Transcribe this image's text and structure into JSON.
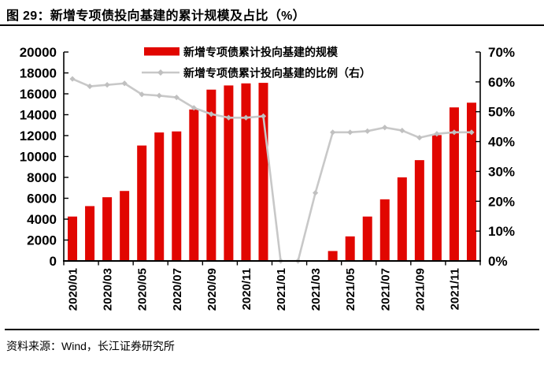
{
  "page": {
    "title": "图 29：新增专项债投向基建的累计规模及占比（%）",
    "source": "资料来源：Wind，长江证券研究所"
  },
  "colors": {
    "bar": "#e10600",
    "line": "#c8c8c8",
    "marker": "#c0c0c0",
    "axis": "#000000",
    "text": "#000000"
  },
  "chart_data": {
    "type": "bar",
    "subtype": "bar+line dual axis",
    "title": "新增专项债投向基建的累计规模及占比（%）",
    "categories": [
      "2020/01",
      "2020/02",
      "2020/03",
      "2020/04",
      "2020/05",
      "2020/06",
      "2020/07",
      "2020/08",
      "2020/09",
      "2020/10",
      "2020/11",
      "2020/12",
      "2021/01",
      "2021/02",
      "2021/03",
      "2021/04",
      "2021/05",
      "2021/06",
      "2021/07",
      "2021/08",
      "2021/09",
      "2021/10",
      "2021/11",
      "2021/12"
    ],
    "x_tick_labels": [
      "2020/01",
      "2020/03",
      "2020/05",
      "2020/07",
      "2020/09",
      "2020/11",
      "2021/01",
      "2021/03",
      "2021/05",
      "2021/07",
      "2021/09",
      "2021/11"
    ],
    "series": [
      {
        "name": "新增专项债累计投向基建的规模",
        "type": "bar",
        "axis": "left",
        "values": [
          4250,
          5250,
          6100,
          6700,
          11050,
          12300,
          12400,
          14500,
          16400,
          16800,
          17000,
          17050,
          0,
          0,
          0,
          950,
          2350,
          4250,
          5900,
          8000,
          9650,
          12050,
          14700,
          15150
        ]
      },
      {
        "name": "新增专项债累计投向基建的比例（右）",
        "type": "line",
        "axis": "right",
        "values": [
          61.0,
          58.5,
          59.0,
          59.5,
          55.8,
          55.4,
          54.8,
          51.3,
          49.2,
          48.0,
          48.0,
          48.5,
          0,
          0,
          22.8,
          43.1,
          43.1,
          43.5,
          44.7,
          43.7,
          41.3,
          42.6,
          43.1,
          43.1
        ]
      }
    ],
    "left_axis": {
      "min": 0,
      "max": 20000,
      "step": 2000
    },
    "right_axis": {
      "min": 0,
      "max": 70,
      "step": 10,
      "suffix": "%"
    },
    "grid": false,
    "legend_position": "top-center"
  }
}
